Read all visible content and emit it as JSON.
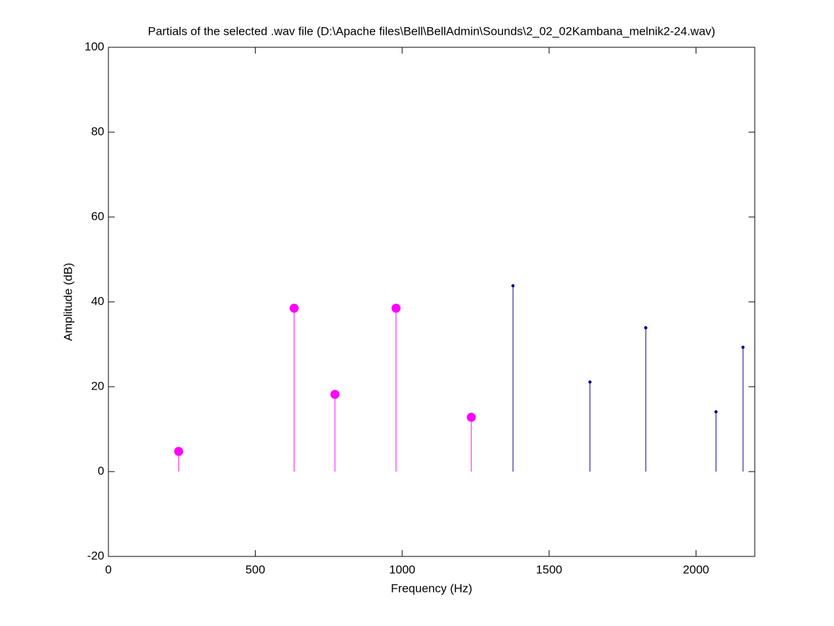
{
  "chart_data": {
    "type": "stem",
    "title": "Partials of the selected .wav file (D:\\Apache files\\Bell\\BellAdmin\\Sounds\\2_02_02Kambana_melnik2-24.wav)",
    "xlabel": "Frequency (Hz)",
    "ylabel": "Amplitude (dB)",
    "series": [
      {
        "color": "#ff00ff",
        "x": [
          239,
          632,
          771,
          979,
          1235
        ],
        "values": [
          4.75,
          38.5,
          18.2,
          38.5,
          12.8
        ]
      },
      {
        "color": "#00008b",
        "x": [
          1377,
          1639,
          1829,
          2068,
          2160
        ],
        "values": [
          43.8,
          21.1,
          33.9,
          14.1,
          29.3
        ]
      }
    ],
    "xlim": [
      0,
      2200
    ],
    "xticks": [
      0,
      500,
      1000,
      1500,
      2000
    ],
    "ylim": [
      -20,
      100
    ],
    "yticks": [
      -20,
      0,
      20,
      40,
      60,
      80,
      100
    ],
    "grid": false
  }
}
